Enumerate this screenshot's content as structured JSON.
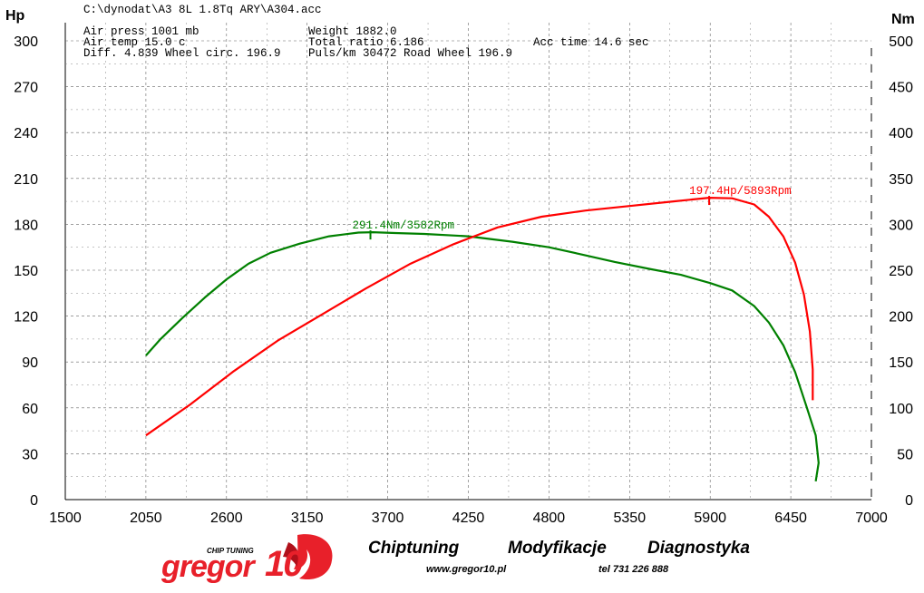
{
  "file_path": "C:\\dynodat\\A3 8L 1.8Tq ARY\\A304.acc",
  "info_rows": [
    [
      "Air press  1001 mb",
      "Weight   1882.0",
      ""
    ],
    [
      "Air temp   15.0 c",
      "Total ratio 6.186",
      "Acc time   14.6 sec"
    ],
    [
      "Diff.     4.839   Wheel circ. 196.9",
      "Puls/km   30472   Road Wheel 196.9",
      ""
    ]
  ],
  "footer": {
    "logo_small": "CHIP TUNING",
    "logo_main": "gregor",
    "logo_suffix": "10",
    "tagline": [
      "Chiptuning",
      "Modyfikacje",
      "Diagnostyka"
    ],
    "website": "www.gregor10.pl",
    "phone": "tel 731 226 888"
  },
  "chart_data": {
    "type": "line",
    "x_range": [
      1500,
      7000
    ],
    "x_ticks": [
      1500,
      2050,
      2600,
      3150,
      3700,
      4250,
      4800,
      5350,
      5900,
      6450,
      7000
    ],
    "y_left": {
      "label": "Hp",
      "range": [
        0,
        300
      ],
      "ticks": [
        0,
        30,
        60,
        90,
        120,
        150,
        180,
        210,
        240,
        270,
        300
      ]
    },
    "y_right": {
      "label": "Nm",
      "range": [
        0,
        500
      ],
      "ticks": [
        0,
        50,
        100,
        150,
        200,
        250,
        300,
        350,
        400,
        450,
        500
      ]
    },
    "grid": true,
    "series": [
      {
        "axis": "right",
        "color": "#008000",
        "peak": {
          "x": 3582,
          "y": 291.4,
          "label": "291.4Nm/3582Rpm"
        },
        "points": [
          [
            2050,
            157
          ],
          [
            2150,
            175
          ],
          [
            2300,
            198
          ],
          [
            2450,
            220
          ],
          [
            2600,
            240
          ],
          [
            2750,
            257
          ],
          [
            2900,
            269
          ],
          [
            3100,
            279
          ],
          [
            3300,
            287
          ],
          [
            3500,
            291
          ],
          [
            3600,
            291.4
          ],
          [
            3750,
            290.5
          ],
          [
            3950,
            289.5
          ],
          [
            4250,
            287
          ],
          [
            4550,
            281
          ],
          [
            4800,
            275
          ],
          [
            5000,
            268
          ],
          [
            5250,
            259
          ],
          [
            5500,
            251
          ],
          [
            5700,
            245
          ],
          [
            5900,
            236
          ],
          [
            6050,
            228
          ],
          [
            6200,
            211
          ],
          [
            6300,
            193
          ],
          [
            6400,
            168
          ],
          [
            6480,
            139
          ],
          [
            6560,
            100
          ],
          [
            6620,
            70
          ],
          [
            6640,
            40
          ],
          [
            6620,
            20
          ]
        ]
      },
      {
        "axis": "left",
        "color": "#ff0000",
        "peak": {
          "x": 5893,
          "y": 197.4,
          "label": "197.4Hp/5893Rpm"
        },
        "points": [
          [
            2050,
            42
          ],
          [
            2350,
            62
          ],
          [
            2650,
            84
          ],
          [
            2950,
            104
          ],
          [
            3250,
            121
          ],
          [
            3550,
            138
          ],
          [
            3850,
            154
          ],
          [
            4150,
            167
          ],
          [
            4450,
            178
          ],
          [
            4750,
            185
          ],
          [
            5050,
            189
          ],
          [
            5350,
            192
          ],
          [
            5650,
            195
          ],
          [
            5893,
            197.4
          ],
          [
            6050,
            197
          ],
          [
            6200,
            193
          ],
          [
            6300,
            185
          ],
          [
            6400,
            172
          ],
          [
            6480,
            155
          ],
          [
            6540,
            134
          ],
          [
            6580,
            110
          ],
          [
            6600,
            85
          ],
          [
            6600,
            65
          ]
        ]
      }
    ]
  }
}
